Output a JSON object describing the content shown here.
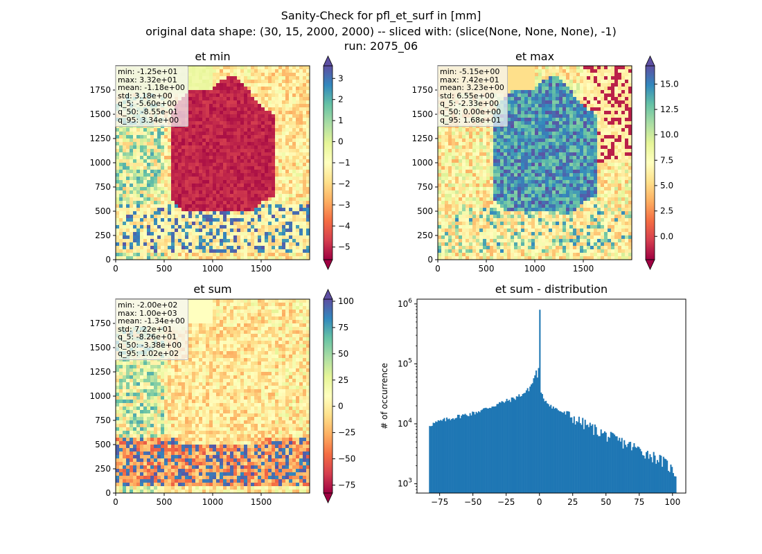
{
  "figure": {
    "title_lines": [
      "Sanity-Check for pfl_et_surf in [mm]",
      "original data shape: (30, 15, 2000, 2000) -- sliced with: (slice(None, None, None), -1)",
      "run: 2075_06"
    ]
  },
  "chart_data": [
    {
      "type": "heatmap",
      "title": "et min",
      "colormap": "Spectral",
      "x_ticks": [
        0,
        500,
        1000,
        1500
      ],
      "y_ticks": [
        0,
        250,
        500,
        750,
        1000,
        1250,
        1500,
        1750
      ],
      "xlim": [
        0,
        2000
      ],
      "ylim": [
        0,
        2000
      ],
      "colorbar": {
        "ticks": [
          "3",
          "2",
          "1",
          "0",
          "−1",
          "−2",
          "−3",
          "−4",
          "−5"
        ],
        "range": [
          -5.6,
          3.6
        ]
      },
      "stats": [
        "min: -1.25e+01",
        "max: 3.32e+01",
        "mean: -1.18e+00",
        "std: 3.18e+00",
        "q_5: -5.60e+00",
        "q_50: -8.55e-01",
        "q_95: 3.34e+00"
      ]
    },
    {
      "type": "heatmap",
      "title": "et max",
      "colormap": "Spectral",
      "x_ticks": [
        0,
        500,
        1000,
        1500
      ],
      "y_ticks": [
        0,
        250,
        500,
        750,
        1000,
        1250,
        1500,
        1750
      ],
      "xlim": [
        0,
        2000
      ],
      "ylim": [
        0,
        2000
      ],
      "colorbar": {
        "ticks": [
          "15.0",
          "12.5",
          "10.0",
          "7.5",
          "5.0",
          "2.5",
          "0.0"
        ],
        "range": [
          -2.3,
          16.8
        ]
      },
      "stats": [
        "min: -5.15e+00",
        "max: 7.42e+01",
        "mean: 3.23e+00",
        "std: 6.55e+00",
        "q_5: -2.33e+00",
        "q_50: 0.00e+00",
        "q_95: 1.68e+01"
      ]
    },
    {
      "type": "heatmap",
      "title": "et sum",
      "colormap": "Spectral",
      "x_ticks": [
        0,
        500,
        1000,
        1500
      ],
      "y_ticks": [
        0,
        250,
        500,
        750,
        1000,
        1250,
        1500,
        1750
      ],
      "xlim": [
        0,
        2000
      ],
      "ylim": [
        0,
        2000
      ],
      "colorbar": {
        "ticks": [
          "100",
          "75",
          "50",
          "25",
          "0",
          "−25",
          "−50",
          "−75"
        ],
        "range": [
          -82.6,
          102
        ]
      },
      "stats": [
        "min: -2.00e+02",
        "max: 1.00e+03",
        "mean: -1.34e+00",
        "std: 7.22e+01",
        "q_5: -8.26e+01",
        "q_50: -3.38e+00",
        "q_95: 1.02e+02"
      ]
    },
    {
      "type": "bar",
      "title": "et sum - distribution",
      "ylabel": "# of occurrence",
      "y_scale": "log",
      "xlim": [
        -92,
        110
      ],
      "ylim": [
        700,
        1200000
      ],
      "x_ticks": [
        "−75",
        "−50",
        "−25",
        "0",
        "25",
        "50",
        "75",
        "100"
      ],
      "y_ticks": [
        "10^3",
        "10^4",
        "10^5",
        "10^6"
      ],
      "color": "#1f77b4",
      "histogram_profile": [
        [
          -83,
          9500
        ],
        [
          -75,
          11000
        ],
        [
          -60,
          13500
        ],
        [
          -50,
          15000
        ],
        [
          -40,
          18000
        ],
        [
          -30,
          22000
        ],
        [
          -20,
          26000
        ],
        [
          -12,
          32000
        ],
        [
          -8,
          38000
        ],
        [
          -5,
          50000
        ],
        [
          -3,
          70000
        ],
        [
          -2,
          88000
        ],
        [
          -1,
          30000
        ],
        [
          0,
          800000
        ],
        [
          1,
          32000
        ],
        [
          3,
          27000
        ],
        [
          5,
          24000
        ],
        [
          10,
          19000
        ],
        [
          20,
          14500
        ],
        [
          30,
          11000
        ],
        [
          40,
          8500
        ],
        [
          50,
          6500
        ],
        [
          60,
          5200
        ],
        [
          70,
          4200
        ],
        [
          80,
          3300
        ],
        [
          90,
          2600
        ],
        [
          96,
          2100
        ],
        [
          102,
          1500
        ]
      ]
    }
  ]
}
